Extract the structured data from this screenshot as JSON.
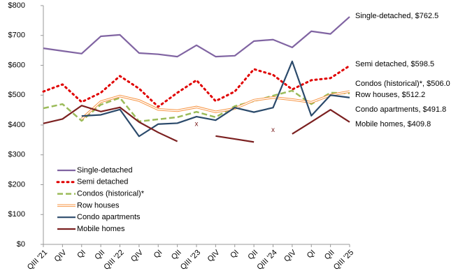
{
  "chart_data": {
    "type": "line",
    "categories": [
      "QIII '21",
      "QIV",
      "QI",
      "QII",
      "QIII '22",
      "QIV",
      "QI",
      "QII",
      "QIII '23",
      "QIV",
      "QI",
      "QII",
      "QIII '24",
      "QIV",
      "QI",
      "QII",
      "QIII '25"
    ],
    "ylim": [
      0,
      800
    ],
    "yticks": [
      {
        "value": 0,
        "label": "$0"
      },
      {
        "value": 100,
        "label": "$100"
      },
      {
        "value": 200,
        "label": "$200"
      },
      {
        "value": 300,
        "label": "$300"
      },
      {
        "value": 400,
        "label": "$400"
      },
      {
        "value": 500,
        "label": "$500"
      },
      {
        "value": 600,
        "label": "$600"
      },
      {
        "value": 700,
        "label": "$700"
      },
      {
        "value": 800,
        "label": "$800"
      }
    ],
    "legend": "lower left",
    "series": [
      {
        "name": "Single-detached",
        "color": "#8064a2",
        "style": "solid",
        "end_label": "Single-detached, $762.5",
        "values": [
          657,
          648,
          639,
          697,
          702,
          641,
          637,
          629,
          667,
          629,
          632,
          681,
          686,
          660,
          714,
          705,
          762.5
        ]
      },
      {
        "name": "Semi detached",
        "color": "#e00000",
        "style": "dotted",
        "end_label": "Semi detached, $598.5",
        "values": [
          512,
          536,
          477,
          508,
          564,
          522,
          461,
          508,
          550,
          480,
          512,
          587,
          568,
          519,
          550,
          557,
          598.5
        ]
      },
      {
        "name": "Condos (historical)*",
        "color": "#9bbb59",
        "style": "dashed",
        "end_label": "Condos (historical)*, $506.0",
        "values": [
          456,
          470,
          414,
          468,
          491,
          412,
          419,
          426,
          444,
          426,
          463,
          480,
          498,
          515,
          470,
          508,
          506.0
        ]
      },
      {
        "name": "Row houses",
        "color": "#f79646",
        "style": "double",
        "end_label": "Row houses, $512.2",
        "values": [
          null,
          null,
          420,
          478,
          497,
          482,
          452,
          448,
          460,
          444,
          455,
          483,
          492,
          485,
          476,
          500,
          512.2
        ]
      },
      {
        "name": "Condo apartments",
        "color": "#2b4a6b",
        "style": "solid",
        "end_label": "Condo apartments, $491.8",
        "values": [
          null,
          null,
          430,
          434,
          452,
          362,
          403,
          406,
          428,
          416,
          458,
          443,
          458,
          613,
          431,
          500,
          491.8
        ]
      },
      {
        "name": "Mobile homes",
        "color": "#7b2020",
        "style": "solid",
        "end_label": "Mobile homes, $409.8",
        "values": [
          405,
          420,
          465,
          445,
          459,
          410,
          375,
          345,
          null,
          363,
          353,
          343,
          null,
          370,
          410,
          451,
          409.8
        ]
      }
    ],
    "annotations": [
      {
        "text": "x",
        "category": 8,
        "value": 403
      },
      {
        "text": "x",
        "category": 12,
        "value": 383
      }
    ]
  }
}
